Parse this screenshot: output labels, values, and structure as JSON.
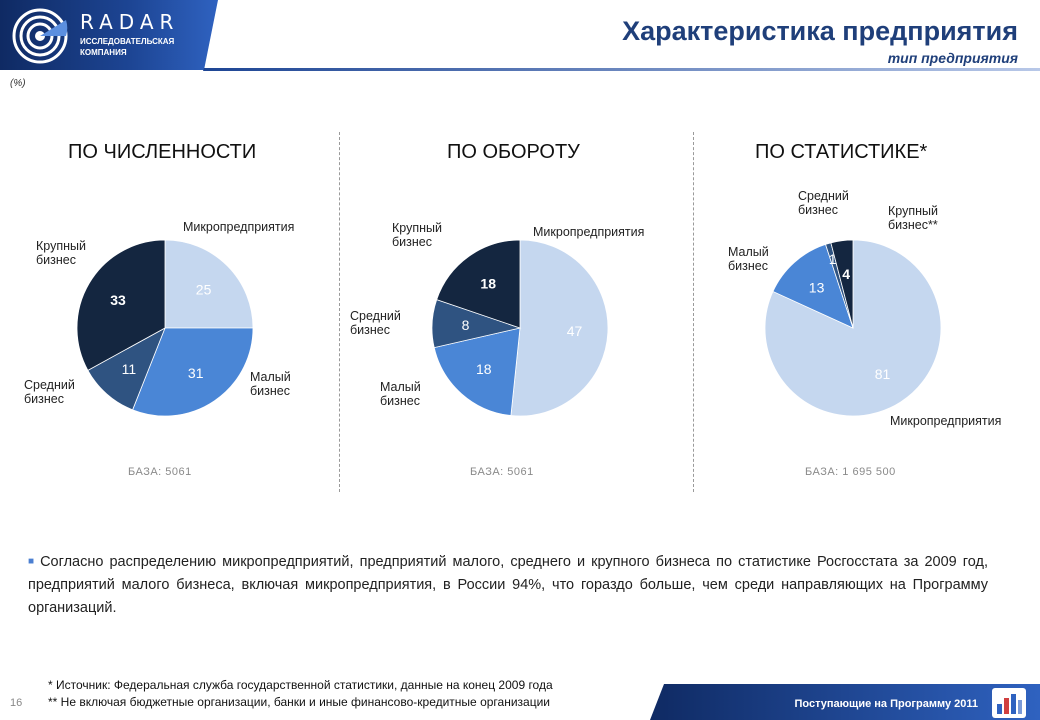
{
  "header": {
    "brand": "RADAR",
    "brand_sub": "ИССЛЕДОВАТЕЛЬСКАЯ КОМПАНИЯ",
    "title": "Характеристика предприятия",
    "subtitle": "тип предприятия",
    "unit_note": "(%)"
  },
  "colors": {
    "micro": "#c5d7ef",
    "small": "#4a86d6",
    "medium": "#2f5381",
    "large": "#142640",
    "accent": "#1f3f7a"
  },
  "chart_data": [
    {
      "type": "pie",
      "title": "ПО ЧИСЛЕННОСТИ",
      "base": "БАЗА: 5061",
      "slices": [
        {
          "label": "Микропредприятия",
          "value": 25
        },
        {
          "label": "Малый бизнес",
          "value": 31
        },
        {
          "label": "Средний бизнес",
          "value": 11
        },
        {
          "label": "Крупный бизнес",
          "value": 33
        }
      ]
    },
    {
      "type": "pie",
      "title": "ПО ОБОРОТУ",
      "base": "БАЗА: 5061",
      "slices": [
        {
          "label": "Микропредприятия",
          "value": 47
        },
        {
          "label": "Малый бизнес",
          "value": 18
        },
        {
          "label": "Средний бизнес",
          "value": 8
        },
        {
          "label": "Крупный бизнес",
          "value": 18
        }
      ]
    },
    {
      "type": "pie",
      "title": "ПО СТАТИСТИКЕ*",
      "base": "БАЗА: 1 695 500",
      "slices": [
        {
          "label": "Микропредприятия",
          "value": 81
        },
        {
          "label": "Малый бизнес",
          "value": 13
        },
        {
          "label": "Средний бизнес",
          "value": 1
        },
        {
          "label": "Крупный бизнес**",
          "value": 4
        }
      ]
    }
  ],
  "note": "Согласно распределению микропредприятий, предприятий малого, среднего и крупного бизнеса по статистике Росгосстата за 2009 год, предприятий малого бизнеса, включая микропредприятия, в России 94%, что гораздо больше, чем среди направляющих на Программу организаций.",
  "footnotes": [
    "* Источник: Федеральная служба государственной статистики, данные на конец 2009 года",
    "** Не включая бюджетные организации, банки и иные финансово-кредитные организации"
  ],
  "footer": {
    "page": "16",
    "text": "Поступающие на Программу 2011"
  }
}
